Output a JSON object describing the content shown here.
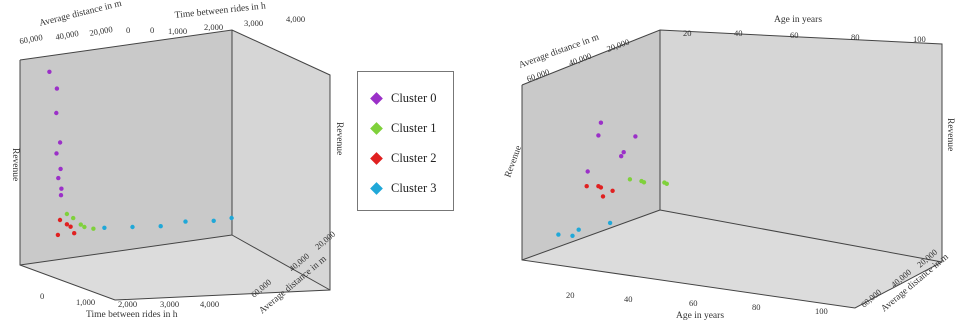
{
  "chart_data": [
    {
      "type": "scatter",
      "title": "",
      "axes": {
        "x": {
          "label": "Time between rides in h",
          "ticks": [
            "0",
            "1,000",
            "2,000",
            "3,000",
            "4,000"
          ],
          "range": [
            0,
            4000
          ]
        },
        "y": {
          "label": "Average distance in m",
          "ticks": [
            "0",
            "20,000",
            "40,000",
            "60,000"
          ],
          "range": [
            0,
            60000
          ]
        },
        "z": {
          "label": "Revenue"
        }
      },
      "top_x_ticks": [
        "0",
        "1,000",
        "2,000",
        "3,000",
        "4,000"
      ],
      "top_y_ticks": [
        "60,000",
        "40,000",
        "20,000",
        "0"
      ],
      "series": [
        {
          "name": "Cluster 0",
          "color": "#9b30c8",
          "points": [
            [
              400,
              5000,
              0.95
            ],
            [
              450,
              8000,
              0.88
            ],
            [
              500,
              6000,
              0.75
            ],
            [
              480,
              9000,
              0.62
            ],
            [
              520,
              5500,
              0.55
            ],
            [
              550,
              7000,
              0.48
            ],
            [
              600,
              4000,
              0.42
            ],
            [
              580,
              6500,
              0.38
            ],
            [
              620,
              5000,
              0.34
            ]
          ]
        },
        {
          "name": "Cluster 1",
          "color": "#7fd13b",
          "points": [
            [
              700,
              6000,
              0.25
            ],
            [
              850,
              5000,
              0.22
            ],
            [
              1000,
              7000,
              0.18
            ],
            [
              1200,
              6000,
              0.16
            ],
            [
              900,
              8000,
              0.2
            ]
          ]
        },
        {
          "name": "Cluster 2",
          "color": "#e02020",
          "points": [
            [
              600,
              5000,
              0.22
            ],
            [
              700,
              6000,
              0.2
            ],
            [
              800,
              5000,
              0.18
            ],
            [
              500,
              7000,
              0.16
            ],
            [
              900,
              4000,
              0.14
            ]
          ]
        },
        {
          "name": "Cluster 3",
          "color": "#20a8d8",
          "points": [
            [
              1500,
              3000,
              0.14
            ],
            [
              2000,
              4000,
              0.13
            ],
            [
              2500,
              5000,
              0.12
            ],
            [
              3000,
              4000,
              0.12
            ],
            [
              3500,
              5000,
              0.11
            ],
            [
              3900,
              3000,
              0.1
            ]
          ]
        }
      ]
    },
    {
      "type": "scatter",
      "title": "",
      "axes": {
        "x": {
          "label": "Age in years",
          "ticks": [
            "20",
            "40",
            "60",
            "80",
            "100"
          ],
          "range": [
            20,
            100
          ]
        },
        "y": {
          "label": "Average distance in m",
          "ticks": [
            "20,000",
            "40,000",
            "60,000"
          ],
          "range": [
            0,
            60000
          ]
        },
        "z": {
          "label": "Revenue"
        }
      },
      "top_x_ticks": [
        "20",
        "40",
        "60",
        "80",
        "100"
      ],
      "top_y_ticks": [
        "60,000",
        "40,000",
        "20,000"
      ],
      "series": [
        {
          "name": "Cluster 0",
          "color": "#9b30c8",
          "points": [
            [
              40,
              8000,
              0.75
            ],
            [
              45,
              6000,
              0.65
            ],
            [
              50,
              9000,
              0.55
            ],
            [
              55,
              7000,
              0.5
            ],
            [
              42,
              5000,
              0.45
            ],
            [
              60,
              8000,
              0.6
            ]
          ]
        },
        {
          "name": "Cluster 1",
          "color": "#7fd13b",
          "points": [
            [
              60,
              7000,
              0.35
            ],
            [
              65,
              8000,
              0.32
            ],
            [
              70,
              6000,
              0.3
            ],
            [
              75,
              9000,
              0.28
            ],
            [
              80,
              7000,
              0.26
            ]
          ]
        },
        {
          "name": "Cluster 2",
          "color": "#e02020",
          "points": [
            [
              35,
              7000,
              0.4
            ],
            [
              40,
              8000,
              0.38
            ],
            [
              45,
              6000,
              0.36
            ],
            [
              38,
              9000,
              0.34
            ],
            [
              50,
              7000,
              0.32
            ]
          ]
        },
        {
          "name": "Cluster 3",
          "color": "#20a8d8",
          "points": [
            [
              25,
              5000,
              0.15
            ],
            [
              30,
              6000,
              0.13
            ],
            [
              40,
              4000,
              0.12
            ],
            [
              55,
              5000,
              0.11
            ]
          ]
        }
      ]
    }
  ],
  "legend": {
    "items": [
      {
        "label": "Cluster 0",
        "color": "#9b30c8"
      },
      {
        "label": "Cluster 1",
        "color": "#7fd13b"
      },
      {
        "label": "Cluster 2",
        "color": "#e02020"
      },
      {
        "label": "Cluster 3",
        "color": "#20a8d8"
      }
    ]
  }
}
